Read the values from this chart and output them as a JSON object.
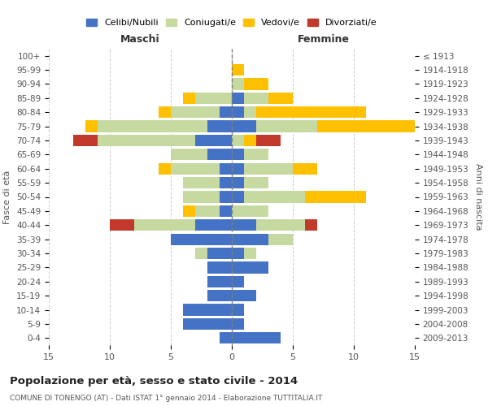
{
  "age_groups": [
    "0-4",
    "5-9",
    "10-14",
    "15-19",
    "20-24",
    "25-29",
    "30-34",
    "35-39",
    "40-44",
    "45-49",
    "50-54",
    "55-59",
    "60-64",
    "65-69",
    "70-74",
    "75-79",
    "80-84",
    "85-89",
    "90-94",
    "95-99",
    "100+"
  ],
  "birth_years": [
    "2009-2013",
    "2004-2008",
    "1999-2003",
    "1994-1998",
    "1989-1993",
    "1984-1988",
    "1979-1983",
    "1974-1978",
    "1969-1973",
    "1964-1968",
    "1959-1963",
    "1954-1958",
    "1949-1953",
    "1944-1948",
    "1939-1943",
    "1934-1938",
    "1929-1933",
    "1924-1928",
    "1919-1923",
    "1914-1918",
    "≤ 1913"
  ],
  "males": {
    "celibi": [
      1,
      4,
      4,
      2,
      2,
      2,
      2,
      5,
      3,
      1,
      1,
      1,
      1,
      2,
      3,
      2,
      1,
      0,
      0,
      0,
      0
    ],
    "coniugati": [
      0,
      0,
      0,
      0,
      0,
      0,
      1,
      0,
      5,
      2,
      3,
      3,
      4,
      3,
      8,
      9,
      4,
      3,
      0,
      0,
      0
    ],
    "vedovi": [
      0,
      0,
      0,
      0,
      0,
      0,
      0,
      0,
      0,
      1,
      0,
      0,
      1,
      0,
      0,
      1,
      1,
      1,
      0,
      0,
      0
    ],
    "divorziati": [
      0,
      0,
      0,
      0,
      0,
      0,
      0,
      0,
      2,
      0,
      0,
      0,
      0,
      0,
      2,
      0,
      0,
      0,
      0,
      0,
      0
    ]
  },
  "females": {
    "nubili": [
      4,
      1,
      1,
      2,
      1,
      3,
      1,
      3,
      2,
      0,
      1,
      1,
      1,
      1,
      0,
      2,
      1,
      1,
      0,
      0,
      0
    ],
    "coniugate": [
      0,
      0,
      0,
      0,
      0,
      0,
      1,
      2,
      4,
      3,
      5,
      2,
      4,
      2,
      1,
      5,
      1,
      2,
      1,
      0,
      0
    ],
    "vedove": [
      0,
      0,
      0,
      0,
      0,
      0,
      0,
      0,
      0,
      0,
      5,
      0,
      2,
      0,
      1,
      9,
      9,
      2,
      2,
      1,
      0
    ],
    "divorziate": [
      0,
      0,
      0,
      0,
      0,
      0,
      0,
      0,
      1,
      0,
      0,
      0,
      0,
      0,
      2,
      0,
      0,
      0,
      0,
      0,
      0
    ]
  },
  "colors": {
    "celibi": "#4472c4",
    "coniugati": "#c5d9a0",
    "vedovi": "#ffc000",
    "divorziati": "#c0392b"
  },
  "title": "Popolazione per età, sesso e stato civile - 2014",
  "subtitle": "COMUNE DI TONENGO (AT) - Dati ISTAT 1° gennaio 2014 - Elaborazione TUTTITALIA.IT",
  "ylabel_left": "Fasce di età",
  "ylabel_right": "Anni di nascita",
  "xlabel_left": "Maschi",
  "xlabel_right": "Femmine",
  "xlim": 15,
  "legend_labels": [
    "Celibi/Nubili",
    "Coniugati/e",
    "Vedovi/e",
    "Divorziati/e"
  ]
}
